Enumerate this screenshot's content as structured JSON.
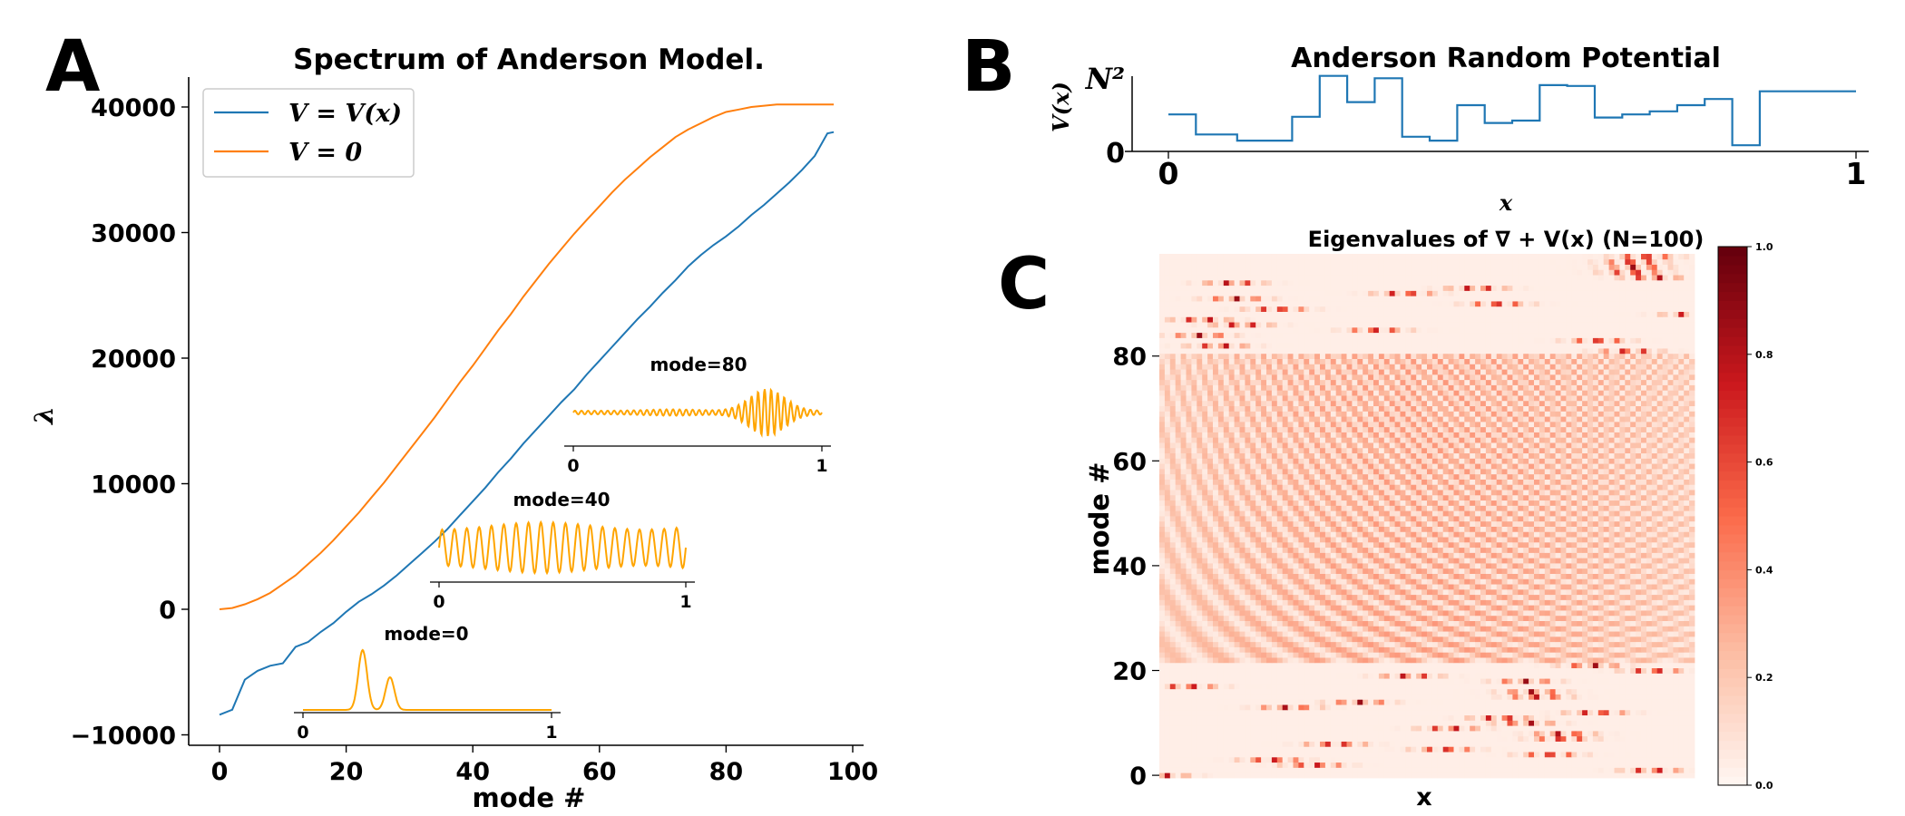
{
  "panels": {
    "a": {
      "letter": "A"
    },
    "b": {
      "letter": "B"
    },
    "c": {
      "letter": "C"
    }
  },
  "chart_data": [
    {
      "panel": "A",
      "type": "line",
      "title": "Spectrum of Anderson Model.",
      "xlabel": "mode #",
      "ylabel": "λ",
      "xlim": [
        -5,
        102
      ],
      "ylim": [
        -10000,
        40000
      ],
      "xticks": [
        "0",
        "20",
        "40",
        "60",
        "80",
        "100"
      ],
      "yticks": [
        "−10000",
        "0",
        "10000",
        "20000",
        "30000",
        "40000"
      ],
      "legend_position": "upper-left",
      "x": [
        0,
        2,
        4,
        6,
        8,
        10,
        12,
        14,
        16,
        18,
        20,
        22,
        24,
        26,
        28,
        30,
        32,
        34,
        36,
        38,
        40,
        42,
        44,
        46,
        48,
        50,
        52,
        54,
        56,
        58,
        60,
        62,
        64,
        66,
        68,
        70,
        72,
        74,
        76,
        78,
        80,
        82,
        84,
        86,
        88,
        90,
        92,
        94,
        96,
        97
      ],
      "series": [
        {
          "name": "V = V(x)",
          "color": "#1f77b4",
          "values": [
            -8400,
            -8000,
            -5600,
            -4900,
            -4500,
            -4300,
            -3000,
            -2600,
            -1800,
            -1100,
            -200,
            600,
            1200,
            1900,
            2700,
            3600,
            4500,
            5400,
            6400,
            7500,
            8600,
            9700,
            10900,
            12000,
            13200,
            14300,
            15400,
            16500,
            17500,
            18700,
            19800,
            20900,
            22000,
            23100,
            24100,
            25200,
            26200,
            27300,
            28200,
            29000,
            29700,
            30500,
            31400,
            32200,
            33100,
            34000,
            35000,
            36100,
            37900,
            38000
          ]
        },
        {
          "name": "V = 0",
          "color": "#ff7f0e",
          "values": [
            0,
            100,
            400,
            800,
            1300,
            2000,
            2700,
            3600,
            4500,
            5500,
            6600,
            7700,
            8900,
            10100,
            11400,
            12700,
            14000,
            15300,
            16700,
            18100,
            19400,
            20800,
            22200,
            23500,
            24900,
            26200,
            27500,
            28700,
            29900,
            31000,
            32100,
            33200,
            34200,
            35100,
            36000,
            36800,
            37600,
            38200,
            38700,
            39200,
            39600,
            39800,
            40000,
            40100,
            40200,
            40200,
            40200,
            40200,
            40200,
            40200
          ]
        }
      ]
    },
    {
      "panel": "A-inset-1",
      "type": "line",
      "title": "mode=80",
      "xticks": [
        "0",
        "1"
      ],
      "color": "#ffa500"
    },
    {
      "panel": "A-inset-2",
      "type": "line",
      "title": "mode=40",
      "xticks": [
        "0",
        "1"
      ],
      "color": "#ffa500"
    },
    {
      "panel": "A-inset-3",
      "type": "line",
      "title": "mode=0",
      "xticks": [
        "0",
        "1"
      ],
      "color": "#ffa500"
    },
    {
      "panel": "B",
      "type": "line",
      "title": "Anderson Random Potential",
      "xlabel": "x",
      "ylabel": "V(x)",
      "xticks": [
        "0",
        "1"
      ],
      "yticks": [
        "0",
        "N²"
      ],
      "xlim": [
        0,
        1
      ],
      "ylim": [
        0,
        1
      ],
      "color": "#1f77b4",
      "x": [
        0.0,
        0.04,
        0.08,
        0.1,
        0.14,
        0.18,
        0.22,
        0.26,
        0.3,
        0.34,
        0.38,
        0.42,
        0.46,
        0.5,
        0.54,
        0.58,
        0.62,
        0.66,
        0.7,
        0.74,
        0.78,
        0.82,
        0.86,
        0.9,
        0.94,
        0.98
      ],
      "values": [
        0.48,
        0.22,
        0.22,
        0.14,
        0.14,
        0.45,
        0.98,
        0.64,
        0.95,
        0.19,
        0.14,
        0.6,
        0.37,
        0.4,
        0.86,
        0.85,
        0.44,
        0.48,
        0.52,
        0.6,
        0.68,
        0.08,
        0.78,
        0.78,
        0.78,
        0.78
      ]
    },
    {
      "panel": "C",
      "type": "heatmap",
      "title": "Eigenvalues of ∇ + V(x) (N=100)",
      "xlabel": "x",
      "ylabel": "mode #",
      "yticks": [
        "0",
        "20",
        "40",
        "60",
        "80"
      ],
      "ylim": [
        0,
        100
      ],
      "colormap": "Reds",
      "colorbar_ticks": [
        "0.0",
        "0.2",
        "0.4",
        "0.6",
        "0.8",
        "1.0"
      ],
      "colorbar_range": [
        0,
        1
      ]
    }
  ]
}
